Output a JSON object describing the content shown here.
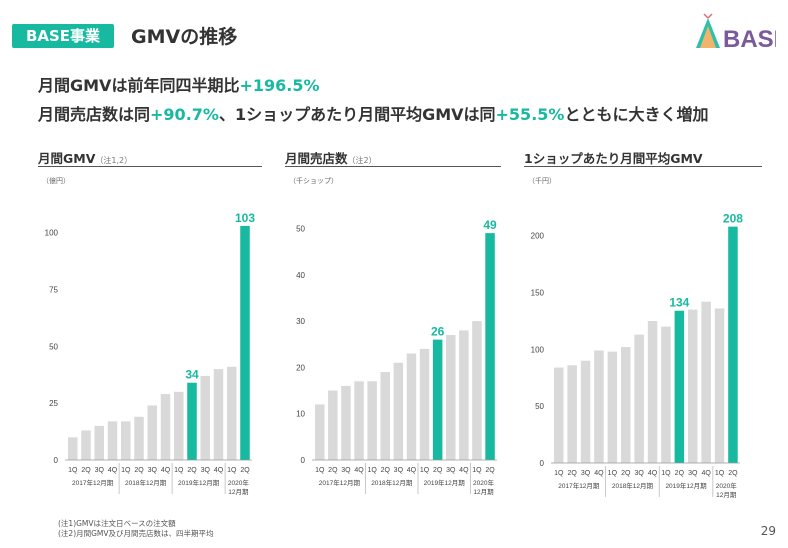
{
  "header": {
    "badge": "BASE事業",
    "title": "GMVの推移",
    "logo_text": "BASE"
  },
  "headline": {
    "line1_a": "月間GMVは前年同四半期比",
    "line1_b": "+196.5%",
    "line2_a": "月間売店数は同",
    "line2_b": "+90.7%",
    "line2_c": "、1ショップあたり月間平均GMVは同",
    "line2_d": "+55.5%",
    "line2_e": "とともに大きく増加"
  },
  "footnotes": [
    "(注1)GMVは注文日ベースの注文額",
    "(注2)月間GMV及び月間売店数は、四半期平均"
  ],
  "page_number": "29",
  "colors": {
    "accent": "#17b9a0",
    "bar": "#d9d9d9",
    "axis": "#555555"
  },
  "chart_data": [
    {
      "type": "bar",
      "title": "月間GMV",
      "title_note": "（注1,2）",
      "unit": "（億円）",
      "categories": [
        "1Q",
        "2Q",
        "3Q",
        "4Q",
        "1Q",
        "2Q",
        "3Q",
        "4Q",
        "1Q",
        "2Q",
        "3Q",
        "4Q",
        "1Q",
        "2Q"
      ],
      "groups": [
        "2017年12月期",
        "2018年12月期",
        "2019年12月期",
        "2020年12月期"
      ],
      "values": [
        10,
        13,
        15,
        17,
        17,
        19,
        24,
        29,
        30,
        34,
        37,
        40,
        41,
        103
      ],
      "highlight": [
        9,
        13
      ],
      "labels": {
        "9": "34",
        "13": "103"
      },
      "yticks": [
        0,
        25,
        50,
        75,
        100
      ],
      "ylim": [
        0,
        110
      ]
    },
    {
      "type": "bar",
      "title": "月間売店数",
      "title_note": "（注2）",
      "unit": "（千ショップ）",
      "categories": [
        "1Q",
        "2Q",
        "3Q",
        "4Q",
        "1Q",
        "2Q",
        "3Q",
        "4Q",
        "1Q",
        "2Q",
        "3Q",
        "4Q",
        "1Q",
        "2Q"
      ],
      "groups": [
        "2017年12月期",
        "2018年12月期",
        "2019年12月期",
        "2020年12月期"
      ],
      "values": [
        12,
        15,
        16,
        17,
        17,
        19,
        21,
        23,
        24,
        26,
        27,
        28,
        30,
        49
      ],
      "highlight": [
        9,
        13
      ],
      "labels": {
        "9": "26",
        "13": "49"
      },
      "yticks": [
        0,
        10,
        20,
        30,
        40,
        50
      ],
      "ylim": [
        0,
        54
      ]
    },
    {
      "type": "bar",
      "title": "1ショップあたり月間平均GMV",
      "title_note": "",
      "unit": "（千円）",
      "categories": [
        "1Q",
        "2Q",
        "3Q",
        "4Q",
        "1Q",
        "2Q",
        "3Q",
        "4Q",
        "1Q",
        "2Q",
        "3Q",
        "4Q",
        "1Q",
        "2Q"
      ],
      "groups": [
        "2017年12月期",
        "2018年12月期",
        "2019年12月期",
        "2020年12月期"
      ],
      "values": [
        84,
        86,
        90,
        99,
        98,
        102,
        113,
        125,
        120,
        134,
        135,
        142,
        136,
        208
      ],
      "highlight": [
        9,
        13
      ],
      "labels": {
        "9": "134",
        "13": "208"
      },
      "yticks": [
        0,
        50,
        100,
        150,
        200
      ],
      "ylim": [
        0,
        220
      ]
    }
  ]
}
